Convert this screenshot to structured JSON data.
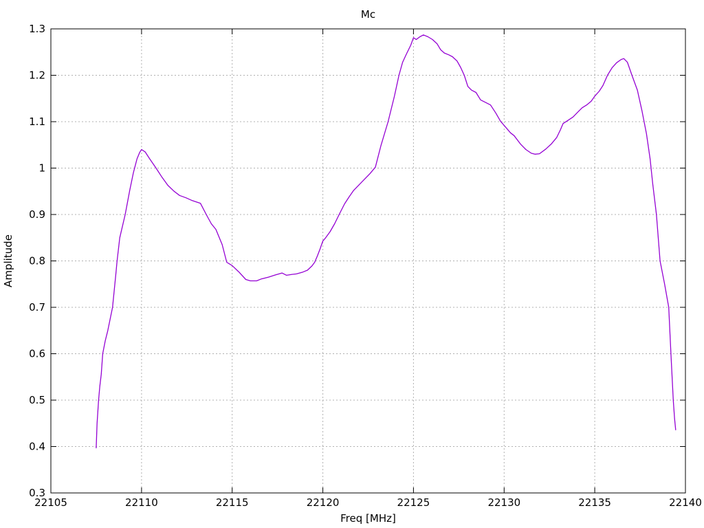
{
  "chart_data": {
    "type": "line",
    "title": "Mc",
    "xlabel": "Freq [MHz]",
    "ylabel": "Amplitude",
    "xlim": [
      22105,
      22140
    ],
    "ylim": [
      0.3,
      1.3
    ],
    "grid": "dotted",
    "legend_position": "none",
    "line_color": "#9400d3",
    "x_ticks": {
      "values": [
        22105,
        22110,
        22115,
        22120,
        22125,
        22130,
        22135,
        22140
      ],
      "labels": [
        "22105",
        "22110",
        "22115",
        "22120",
        "22125",
        "22130",
        "22135",
        "22140"
      ]
    },
    "y_ticks": {
      "values": [
        0.3,
        0.4,
        0.5,
        0.6,
        0.7,
        0.8,
        0.9,
        1.0,
        1.1,
        1.2,
        1.3
      ],
      "labels": [
        "0.3",
        "0.4",
        "0.5",
        "0.6",
        "0.7",
        "0.8",
        "0.9",
        "1",
        "1.1",
        "1.2",
        "1.3"
      ]
    },
    "series": [
      {
        "name": "Mc",
        "points": [
          [
            22107.5,
            0.397
          ],
          [
            22107.55,
            0.45
          ],
          [
            22107.63,
            0.5
          ],
          [
            22107.7,
            0.53
          ],
          [
            22107.78,
            0.556
          ],
          [
            22107.86,
            0.6
          ],
          [
            22108.0,
            0.628
          ],
          [
            22108.14,
            0.65
          ],
          [
            22108.4,
            0.7
          ],
          [
            22108.58,
            0.77
          ],
          [
            22108.65,
            0.8
          ],
          [
            22108.8,
            0.85
          ],
          [
            22109.1,
            0.9
          ],
          [
            22109.35,
            0.952
          ],
          [
            22109.55,
            0.99
          ],
          [
            22109.75,
            1.02
          ],
          [
            22109.9,
            1.034
          ],
          [
            22110.0,
            1.04
          ],
          [
            22110.2,
            1.035
          ],
          [
            22110.45,
            1.02
          ],
          [
            22110.8,
            1.0
          ],
          [
            22111.1,
            0.982
          ],
          [
            22111.45,
            0.963
          ],
          [
            22111.8,
            0.95
          ],
          [
            22112.1,
            0.941
          ],
          [
            22112.45,
            0.936
          ],
          [
            22112.8,
            0.93
          ],
          [
            22113.25,
            0.924
          ],
          [
            22113.57,
            0.9
          ],
          [
            22113.85,
            0.88
          ],
          [
            22114.1,
            0.868
          ],
          [
            22114.45,
            0.835
          ],
          [
            22114.7,
            0.797
          ],
          [
            22115.0,
            0.79
          ],
          [
            22115.4,
            0.775
          ],
          [
            22115.75,
            0.76
          ],
          [
            22116.0,
            0.757
          ],
          [
            22116.35,
            0.757
          ],
          [
            22116.6,
            0.761
          ],
          [
            22117.0,
            0.765
          ],
          [
            22117.4,
            0.77
          ],
          [
            22117.75,
            0.774
          ],
          [
            22118.0,
            0.769
          ],
          [
            22118.3,
            0.771
          ],
          [
            22118.55,
            0.772
          ],
          [
            22118.9,
            0.776
          ],
          [
            22119.15,
            0.78
          ],
          [
            22119.4,
            0.789
          ],
          [
            22119.55,
            0.797
          ],
          [
            22119.7,
            0.811
          ],
          [
            22119.85,
            0.826
          ],
          [
            22120.0,
            0.843
          ],
          [
            22120.12,
            0.848
          ],
          [
            22120.4,
            0.863
          ],
          [
            22120.65,
            0.88
          ],
          [
            22120.9,
            0.9
          ],
          [
            22121.2,
            0.923
          ],
          [
            22121.45,
            0.938
          ],
          [
            22121.7,
            0.952
          ],
          [
            22122.0,
            0.964
          ],
          [
            22122.3,
            0.976
          ],
          [
            22122.6,
            0.988
          ],
          [
            22122.9,
            1.002
          ],
          [
            22123.2,
            1.048
          ],
          [
            22123.6,
            1.1
          ],
          [
            22123.95,
            1.155
          ],
          [
            22124.2,
            1.2
          ],
          [
            22124.4,
            1.228
          ],
          [
            22124.6,
            1.245
          ],
          [
            22124.85,
            1.265
          ],
          [
            22125.0,
            1.281
          ],
          [
            22125.15,
            1.277
          ],
          [
            22125.35,
            1.283
          ],
          [
            22125.55,
            1.287
          ],
          [
            22125.8,
            1.283
          ],
          [
            22126.05,
            1.277
          ],
          [
            22126.3,
            1.268
          ],
          [
            22126.5,
            1.255
          ],
          [
            22126.7,
            1.248
          ],
          [
            22126.95,
            1.244
          ],
          [
            22127.15,
            1.24
          ],
          [
            22127.4,
            1.231
          ],
          [
            22127.6,
            1.217
          ],
          [
            22127.8,
            1.2
          ],
          [
            22128.0,
            1.176
          ],
          [
            22128.2,
            1.168
          ],
          [
            22128.45,
            1.163
          ],
          [
            22128.7,
            1.147
          ],
          [
            22129.0,
            1.141
          ],
          [
            22129.25,
            1.136
          ],
          [
            22129.55,
            1.118
          ],
          [
            22129.8,
            1.101
          ],
          [
            22130.0,
            1.092
          ],
          [
            22130.35,
            1.076
          ],
          [
            22130.55,
            1.07
          ],
          [
            22130.9,
            1.052
          ],
          [
            22131.2,
            1.04
          ],
          [
            22131.5,
            1.032
          ],
          [
            22131.7,
            1.03
          ],
          [
            22131.95,
            1.031
          ],
          [
            22132.3,
            1.041
          ],
          [
            22132.6,
            1.052
          ],
          [
            22132.9,
            1.066
          ],
          [
            22133.1,
            1.082
          ],
          [
            22133.25,
            1.096
          ],
          [
            22133.45,
            1.101
          ],
          [
            22133.8,
            1.11
          ],
          [
            22134.1,
            1.122
          ],
          [
            22134.3,
            1.13
          ],
          [
            22134.55,
            1.136
          ],
          [
            22134.8,
            1.144
          ],
          [
            22135.0,
            1.155
          ],
          [
            22135.25,
            1.166
          ],
          [
            22135.45,
            1.178
          ],
          [
            22135.7,
            1.2
          ],
          [
            22135.95,
            1.216
          ],
          [
            22136.2,
            1.227
          ],
          [
            22136.45,
            1.234
          ],
          [
            22136.6,
            1.236
          ],
          [
            22136.8,
            1.228
          ],
          [
            22137.05,
            1.2
          ],
          [
            22137.35,
            1.168
          ],
          [
            22137.6,
            1.124
          ],
          [
            22137.85,
            1.074
          ],
          [
            22138.05,
            1.02
          ],
          [
            22138.2,
            0.965
          ],
          [
            22138.4,
            0.9
          ],
          [
            22138.6,
            0.8
          ],
          [
            22138.85,
            0.75
          ],
          [
            22139.08,
            0.7
          ],
          [
            22139.2,
            0.6
          ],
          [
            22139.33,
            0.5
          ],
          [
            22139.4,
            0.46
          ],
          [
            22139.46,
            0.436
          ]
        ]
      }
    ]
  }
}
